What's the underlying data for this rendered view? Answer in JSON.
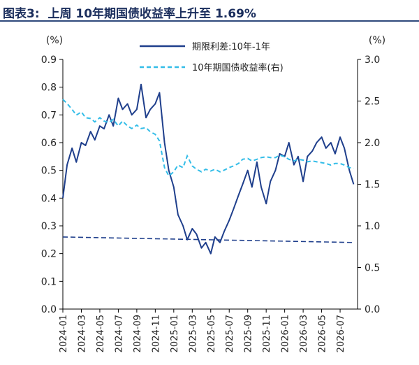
{
  "title": "图表3:  上周 10年期国债收益率上升至 1.69%",
  "chart_data": {
    "type": "line",
    "left_unit": "(%)",
    "right_unit": "(%)",
    "left_ylim": [
      0.0,
      0.9
    ],
    "left_ticks": [
      "0.0",
      "0.1",
      "0.2",
      "0.3",
      "0.4",
      "0.5",
      "0.6",
      "0.7",
      "0.8",
      "0.9"
    ],
    "right_ylim": [
      0.0,
      3.0
    ],
    "right_ticks": [
      "0.0",
      "0.5",
      "1.0",
      "1.5",
      "2.0",
      "2.5",
      "3.0"
    ],
    "x_tick_labels": [
      "2024-01",
      "2024-03",
      "2024-05",
      "2024-07",
      "2024-09",
      "2024-11",
      "2025-01",
      "2025-03",
      "2025-05",
      "2025-07",
      "2025-09",
      "2025-11",
      "2026-01",
      "2026-03",
      "2026-05",
      "2026-07"
    ],
    "legend_position": "top-center",
    "colors": {
      "spread": "#1f3f8c",
      "yield": "#33bde8",
      "trend": "#1f3f8c"
    },
    "series": [
      {
        "name": "期限利差:10年-1年",
        "axis": "left",
        "style": "solid",
        "x": [
          "2024-01",
          "2024-01-15",
          "2024-02",
          "2024-02-15",
          "2024-03",
          "2024-03-15",
          "2024-04",
          "2024-04-15",
          "2024-05",
          "2024-05-15",
          "2024-06",
          "2024-06-15",
          "2024-07",
          "2024-07-15",
          "2024-08",
          "2024-08-15",
          "2024-09",
          "2024-09-15",
          "2024-10",
          "2024-10-15",
          "2024-11",
          "2024-11-15",
          "2024-12",
          "2024-12-15",
          "2025-01",
          "2025-01-15",
          "2025-02",
          "2025-02-15",
          "2025-03",
          "2025-03-15",
          "2025-04",
          "2025-04-15",
          "2025-05",
          "2025-05-15",
          "2025-06",
          "2025-06-15",
          "2025-07",
          "2025-07-15",
          "2025-08",
          "2025-08-15",
          "2025-09",
          "2025-09-15",
          "2025-10",
          "2025-10-15",
          "2025-11",
          "2025-11-15",
          "2025-12",
          "2025-12-15",
          "2026-01",
          "2026-01-15",
          "2026-02",
          "2026-02-15",
          "2026-03",
          "2026-03-15",
          "2026-04",
          "2026-04-15",
          "2026-05",
          "2026-05-15",
          "2026-06",
          "2026-06-15",
          "2026-07",
          "2026-07-15",
          "2026-08",
          "2026-08-15"
        ],
        "values": [
          0.4,
          0.52,
          0.58,
          0.53,
          0.6,
          0.59,
          0.64,
          0.61,
          0.66,
          0.65,
          0.7,
          0.66,
          0.76,
          0.72,
          0.74,
          0.7,
          0.72,
          0.81,
          0.69,
          0.72,
          0.74,
          0.78,
          0.6,
          0.5,
          0.44,
          0.34,
          0.3,
          0.25,
          0.29,
          0.27,
          0.22,
          0.24,
          0.2,
          0.26,
          0.24,
          0.28,
          0.32,
          0.36,
          0.41,
          0.45,
          0.5,
          0.44,
          0.53,
          0.44,
          0.38,
          0.46,
          0.5,
          0.56,
          0.55,
          0.6,
          0.52,
          0.55,
          0.46,
          0.55,
          0.57,
          0.6,
          0.62,
          0.58,
          0.6,
          0.56,
          0.62,
          0.58,
          0.5,
          0.45
        ]
      },
      {
        "name": "10年期国债收益率(右)",
        "axis": "right",
        "style": "dashed",
        "x": [
          "2024-01",
          "2024-01-15",
          "2024-02",
          "2024-02-15",
          "2024-03",
          "2024-03-15",
          "2024-04",
          "2024-04-15",
          "2024-05",
          "2024-05-15",
          "2024-06",
          "2024-06-15",
          "2024-07",
          "2024-07-15",
          "2024-08",
          "2024-08-15",
          "2024-09",
          "2024-09-15",
          "2024-10",
          "2024-10-15",
          "2024-11",
          "2024-11-15",
          "2024-12",
          "2024-12-15",
          "2025-01",
          "2025-01-15",
          "2025-02",
          "2025-02-15",
          "2025-03",
          "2025-03-15",
          "2025-04",
          "2025-04-15",
          "2025-05",
          "2025-05-15",
          "2025-06",
          "2025-06-15",
          "2025-07",
          "2025-07-15",
          "2025-08",
          "2025-08-15",
          "2025-09",
          "2025-09-15",
          "2025-10",
          "2025-10-15",
          "2025-11",
          "2025-11-15",
          "2025-12",
          "2025-12-15",
          "2026-01",
          "2026-01-15",
          "2026-02",
          "2026-02-15",
          "2026-03",
          "2026-03-15",
          "2026-04",
          "2026-04-15",
          "2026-05",
          "2026-05-15",
          "2026-06",
          "2026-06-15",
          "2026-07",
          "2026-07-15",
          "2026-08",
          "2026-08-15"
        ],
        "values": [
          2.52,
          2.47,
          2.4,
          2.33,
          2.37,
          2.3,
          2.29,
          2.25,
          2.3,
          2.26,
          2.24,
          2.28,
          2.2,
          2.26,
          2.2,
          2.17,
          2.21,
          2.17,
          2.18,
          2.13,
          2.1,
          2.02,
          1.7,
          1.6,
          1.65,
          1.73,
          1.7,
          1.84,
          1.72,
          1.68,
          1.65,
          1.68,
          1.66,
          1.68,
          1.65,
          1.67,
          1.7,
          1.72,
          1.75,
          1.8,
          1.81,
          1.78,
          1.8,
          1.82,
          1.83,
          1.82,
          1.82,
          1.85,
          1.83,
          1.8,
          1.78,
          1.8,
          1.79,
          1.77,
          1.78,
          1.77,
          1.76,
          1.75,
          1.73,
          1.75,
          1.75,
          1.73,
          1.7,
          1.69
        ]
      },
      {
        "axis": "left",
        "style": "dashed-trend",
        "x": [
          "2024-01",
          "2026-08-15"
        ],
        "values": [
          0.26,
          0.24
        ]
      }
    ]
  }
}
